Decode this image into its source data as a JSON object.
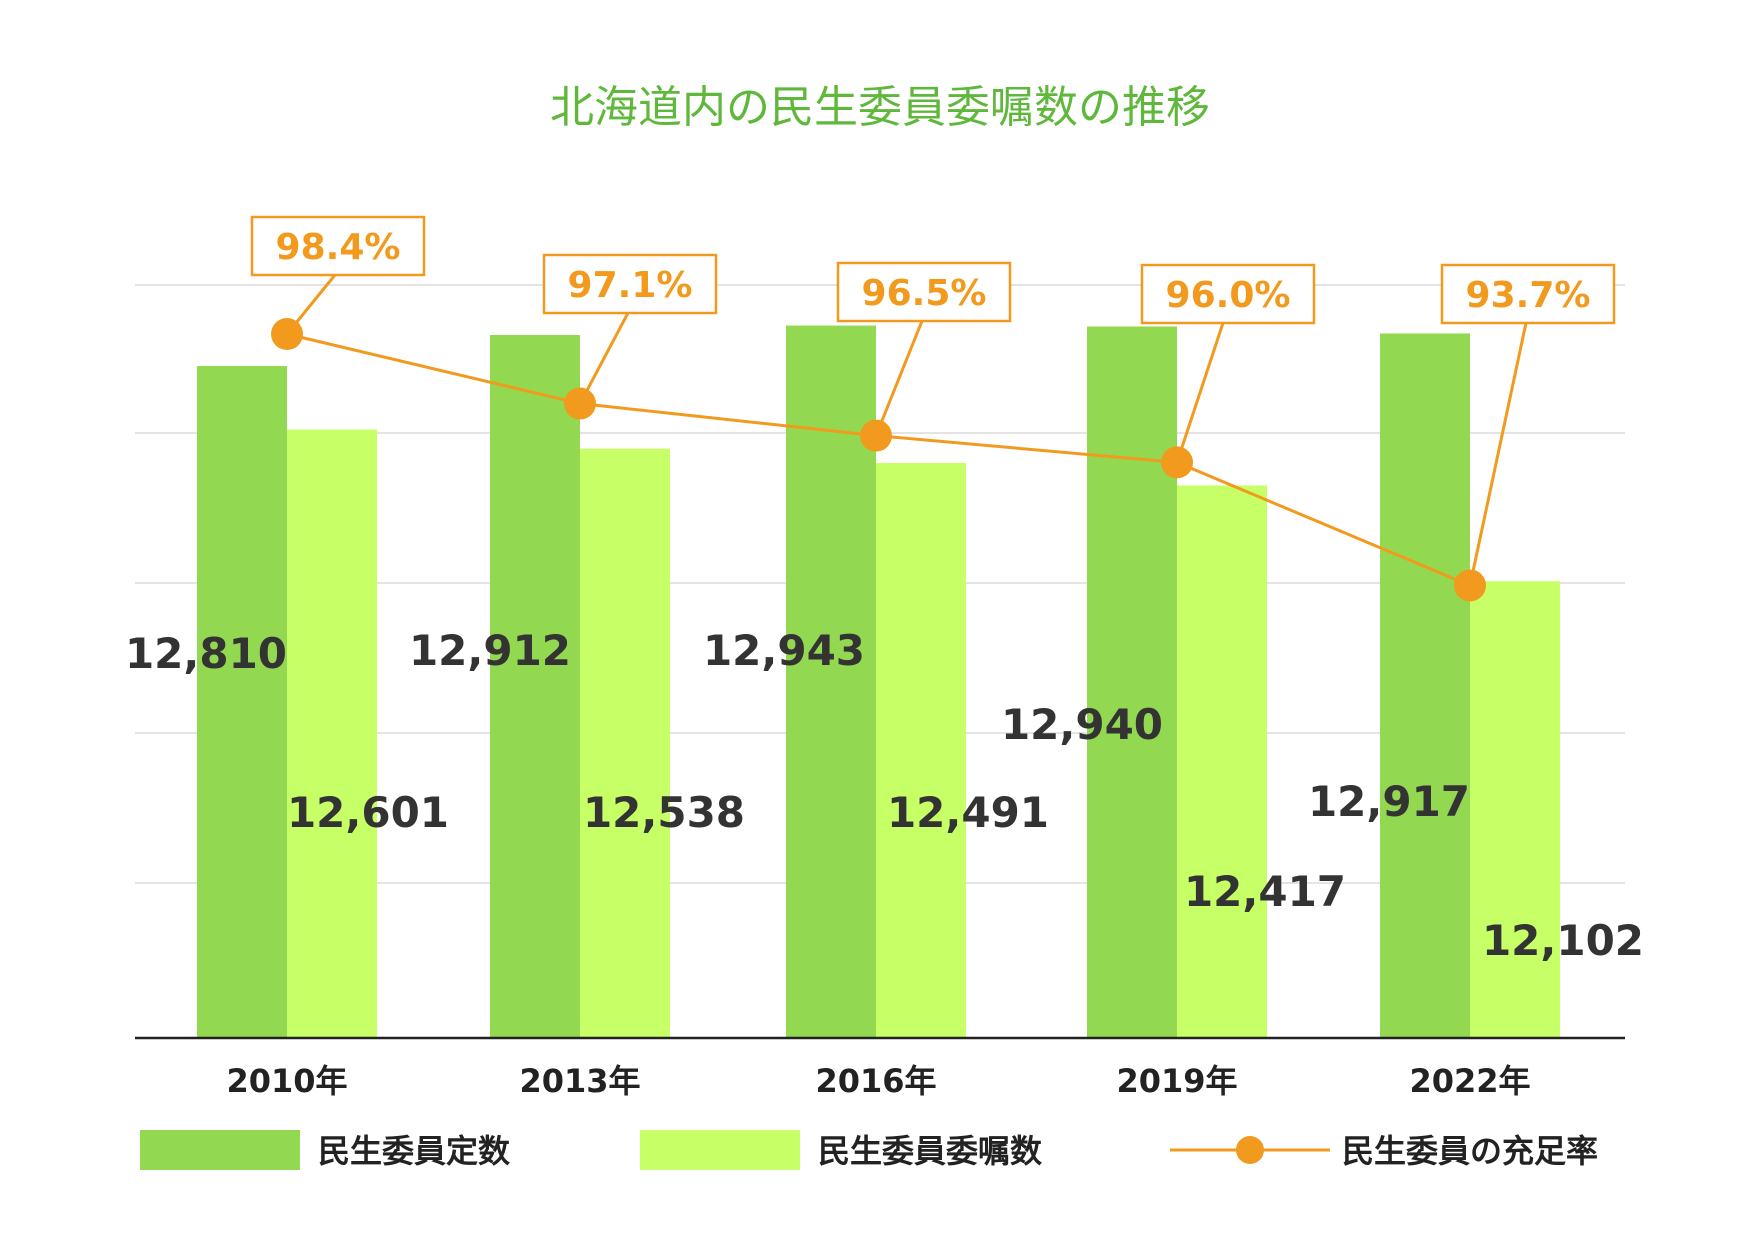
{
  "chart_data": {
    "type": "bar",
    "title": "北海道内の民生委員委嘱数の推移",
    "categories": [
      "2010年",
      "2013年",
      "2016年",
      "2019年",
      "2022年"
    ],
    "series": [
      {
        "name": "民生委員定数",
        "type": "bar",
        "color": "#92d850",
        "values": [
          12810,
          12912,
          12943,
          12940,
          12917
        ],
        "labels": [
          "12,810",
          "12,912",
          "12,943",
          "12,940",
          "12,917"
        ]
      },
      {
        "name": "民生委員委嘱数",
        "type": "bar",
        "color": "#c6ff66",
        "values": [
          12601,
          12538,
          12491,
          12417,
          12102
        ],
        "labels": [
          "12,601",
          "12,538",
          "12,491",
          "12,417",
          "12,102"
        ]
      },
      {
        "name": "民生委員の充足率",
        "type": "line",
        "color": "#f29a1e",
        "values": [
          98.4,
          97.1,
          96.5,
          96.0,
          93.7
        ],
        "labels": [
          "98.4%",
          "97.1%",
          "96.5%",
          "96.0%",
          "93.7%"
        ]
      }
    ],
    "grid": true,
    "legend": "bottom"
  }
}
